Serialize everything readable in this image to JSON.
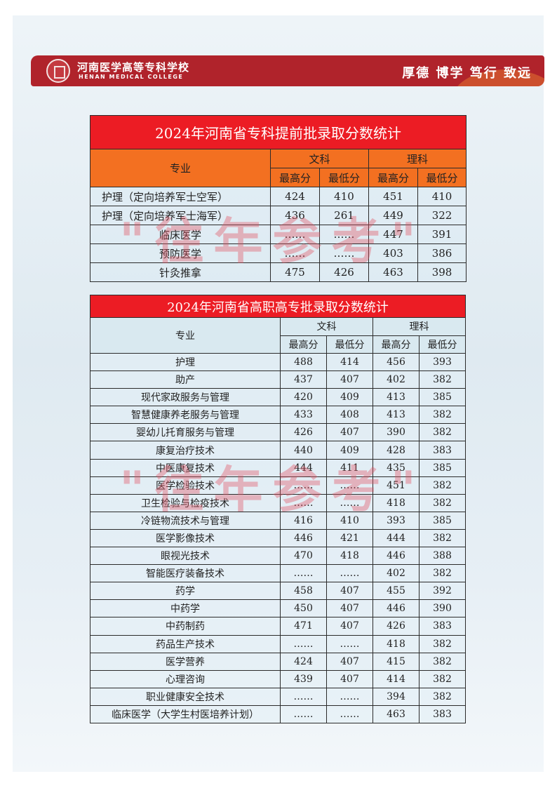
{
  "header": {
    "school_cn": "河南医学高等专科学校",
    "school_en": "HENAN MEDICAL COLLEGE",
    "motto": "厚德 博学 笃行 致远"
  },
  "watermark": "\"往年参考\"",
  "colors": {
    "banner": "#b0232b",
    "title_red": "#ec1c24",
    "header_orange": "#f37021"
  },
  "table1": {
    "title": "2024年河南省专科提前批录取分数统计",
    "col_major": "专业",
    "group_wen": "文科",
    "group_li": "理科",
    "max": "最高分",
    "min": "最低分",
    "rows": [
      [
        "护理（定向培养军士空军）",
        "424",
        "410",
        "451",
        "410"
      ],
      [
        "护理（定向培养军士海军）",
        "436",
        "261",
        "449",
        "322"
      ],
      [
        "临床医学",
        "……",
        "……",
        "447",
        "391"
      ],
      [
        "预防医学",
        "……",
        "……",
        "403",
        "386"
      ],
      [
        "针灸推拿",
        "475",
        "426",
        "463",
        "398"
      ]
    ]
  },
  "table2": {
    "title": "2024年河南省高职高专批录取分数统计",
    "col_major": "专业",
    "group_wen": "文科",
    "group_li": "理科",
    "max": "最高分",
    "min": "最低分",
    "rows": [
      [
        "护理",
        "488",
        "414",
        "456",
        "393"
      ],
      [
        "助产",
        "437",
        "407",
        "402",
        "382"
      ],
      [
        "现代家政服务与管理",
        "420",
        "409",
        "413",
        "385"
      ],
      [
        "智慧健康养老服务与管理",
        "433",
        "408",
        "413",
        "382"
      ],
      [
        "婴幼儿托育服务与管理",
        "426",
        "407",
        "390",
        "382"
      ],
      [
        "康复治疗技术",
        "440",
        "409",
        "428",
        "383"
      ],
      [
        "中医康复技术",
        "444",
        "411",
        "435",
        "385"
      ],
      [
        "医学检验技术",
        "……",
        "……",
        "451",
        "382"
      ],
      [
        "卫生检验与检疫技术",
        "……",
        "……",
        "418",
        "382"
      ],
      [
        "冷链物流技术与管理",
        "416",
        "410",
        "393",
        "385"
      ],
      [
        "医学影像技术",
        "446",
        "421",
        "444",
        "382"
      ],
      [
        "眼视光技术",
        "470",
        "418",
        "446",
        "388"
      ],
      [
        "智能医疗装备技术",
        "……",
        "……",
        "402",
        "382"
      ],
      [
        "药学",
        "458",
        "407",
        "455",
        "392"
      ],
      [
        "中药学",
        "450",
        "407",
        "446",
        "390"
      ],
      [
        "中药制药",
        "471",
        "407",
        "426",
        "383"
      ],
      [
        "药品生产技术",
        "……",
        "……",
        "418",
        "382"
      ],
      [
        "医学营养",
        "424",
        "407",
        "415",
        "382"
      ],
      [
        "心理咨询",
        "439",
        "407",
        "414",
        "382"
      ],
      [
        "职业健康安全技术",
        "……",
        "……",
        "394",
        "382"
      ],
      [
        "临床医学（大学生村医培养计划）",
        "……",
        "……",
        "463",
        "383"
      ]
    ]
  }
}
